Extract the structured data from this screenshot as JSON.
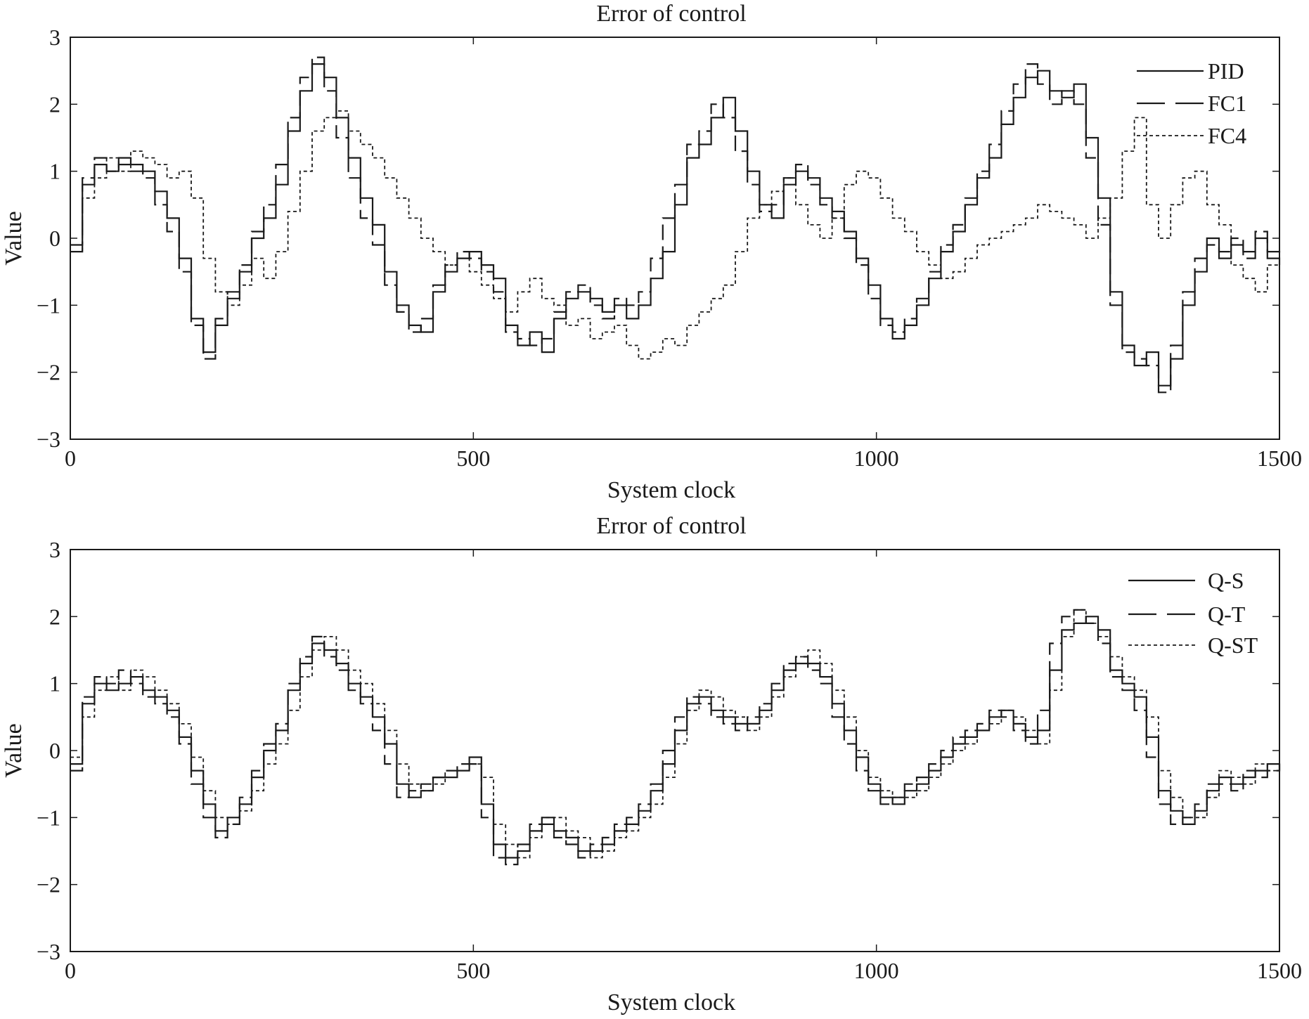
{
  "chart_data": [
    {
      "type": "line",
      "title": "Error of control",
      "xlabel": "System clock",
      "ylabel": "Value",
      "xlim": [
        0,
        1500
      ],
      "ylim": [
        -3,
        3
      ],
      "xticks": [
        0,
        500,
        1000,
        1500
      ],
      "yticks": [
        3,
        2,
        1,
        0,
        -1,
        -2,
        -3
      ],
      "xtick_labels": [
        "0",
        "500",
        "1000",
        "1500"
      ],
      "ytick_labels": [
        "3",
        "2",
        "1",
        "0",
        "−1",
        "−2",
        "−3"
      ],
      "legend_position": "top-right",
      "x": [
        0,
        15,
        30,
        45,
        60,
        75,
        90,
        105,
        120,
        135,
        150,
        165,
        180,
        195,
        210,
        225,
        240,
        255,
        270,
        285,
        300,
        315,
        330,
        345,
        360,
        375,
        390,
        405,
        420,
        435,
        450,
        465,
        480,
        495,
        510,
        525,
        540,
        555,
        570,
        585,
        600,
        615,
        630,
        645,
        660,
        675,
        690,
        705,
        720,
        735,
        750,
        765,
        780,
        795,
        810,
        825,
        840,
        855,
        870,
        885,
        900,
        915,
        930,
        945,
        960,
        975,
        990,
        1005,
        1020,
        1035,
        1050,
        1065,
        1080,
        1095,
        1110,
        1125,
        1140,
        1155,
        1170,
        1185,
        1200,
        1215,
        1230,
        1245,
        1260,
        1275,
        1290,
        1305,
        1320,
        1335,
        1350,
        1365,
        1380,
        1395,
        1410,
        1425,
        1440,
        1455,
        1470,
        1485,
        1500
      ],
      "series": [
        {
          "name": "PID",
          "dash": "solid",
          "values": [
            -0.2,
            0.8,
            1.1,
            1.0,
            1.2,
            1.1,
            1.0,
            0.7,
            0.3,
            -0.3,
            -1.2,
            -1.7,
            -1.3,
            -0.9,
            -0.5,
            0.0,
            0.3,
            0.8,
            1.6,
            2.2,
            2.6,
            2.4,
            1.8,
            1.2,
            0.6,
            0.2,
            -0.5,
            -1.0,
            -1.3,
            -1.4,
            -0.8,
            -0.5,
            -0.3,
            -0.2,
            -0.4,
            -0.6,
            -1.3,
            -1.6,
            -1.4,
            -1.7,
            -1.2,
            -0.9,
            -0.8,
            -0.9,
            -1.1,
            -1.0,
            -1.2,
            -1.0,
            -0.6,
            -0.2,
            0.5,
            1.2,
            1.4,
            1.8,
            2.1,
            1.6,
            1.0,
            0.5,
            0.3,
            0.8,
            1.0,
            0.9,
            0.6,
            0.4,
            0.1,
            -0.3,
            -0.7,
            -1.2,
            -1.5,
            -1.3,
            -1.0,
            -0.6,
            -0.2,
            0.1,
            0.5,
            0.9,
            1.2,
            1.7,
            2.1,
            2.4,
            2.5,
            2.2,
            2.1,
            2.3,
            1.5,
            0.6,
            -0.8,
            -1.6,
            -1.9,
            -1.7,
            -2.2,
            -1.8,
            -1.0,
            -0.5,
            0.0,
            -0.3,
            -0.1,
            -0.2,
            0.0,
            -0.3,
            -0.4
          ]
        },
        {
          "name": "FC1",
          "dash": "long-dash",
          "values": [
            -0.1,
            0.9,
            1.2,
            1.0,
            1.1,
            1.0,
            0.9,
            0.5,
            0.1,
            -0.5,
            -1.3,
            -1.8,
            -1.2,
            -0.8,
            -0.4,
            0.1,
            0.5,
            1.1,
            1.8,
            2.4,
            2.7,
            2.2,
            1.5,
            0.9,
            0.3,
            -0.1,
            -0.7,
            -1.1,
            -1.4,
            -1.2,
            -0.7,
            -0.4,
            -0.2,
            -0.3,
            -0.5,
            -0.8,
            -1.4,
            -1.5,
            -1.6,
            -1.5,
            -1.1,
            -0.8,
            -0.7,
            -1.0,
            -1.2,
            -0.9,
            -1.0,
            -0.8,
            -0.3,
            0.3,
            0.8,
            1.4,
            1.6,
            2.0,
            1.8,
            1.3,
            0.8,
            0.4,
            0.5,
            0.9,
            1.1,
            0.8,
            0.5,
            0.3,
            0.0,
            -0.4,
            -0.9,
            -1.3,
            -1.4,
            -1.2,
            -0.9,
            -0.5,
            -0.1,
            0.2,
            0.6,
            1.0,
            1.4,
            1.9,
            2.3,
            2.6,
            2.3,
            2.0,
            2.2,
            2.0,
            1.2,
            0.2,
            -1.0,
            -1.7,
            -1.8,
            -1.9,
            -2.3,
            -1.6,
            -0.8,
            -0.3,
            -0.1,
            -0.2,
            0.0,
            -0.3,
            0.1,
            -0.2,
            -0.3
          ]
        },
        {
          "name": "FC4",
          "dash": "dotted",
          "values": [
            -0.2,
            0.6,
            0.9,
            1.2,
            1.0,
            1.3,
            1.2,
            1.1,
            0.9,
            1.0,
            0.6,
            -0.3,
            -0.8,
            -1.0,
            -0.7,
            -0.3,
            -0.6,
            -0.2,
            0.4,
            1.0,
            1.6,
            1.8,
            1.9,
            1.6,
            1.4,
            1.2,
            0.9,
            0.6,
            0.3,
            0.0,
            -0.2,
            -0.4,
            -0.3,
            -0.5,
            -0.7,
            -0.9,
            -1.1,
            -0.8,
            -0.6,
            -0.9,
            -1.0,
            -1.3,
            -1.2,
            -1.5,
            -1.4,
            -1.3,
            -1.6,
            -1.8,
            -1.7,
            -1.5,
            -1.6,
            -1.3,
            -1.1,
            -0.9,
            -0.7,
            -0.2,
            0.3,
            0.5,
            0.7,
            0.9,
            0.5,
            0.2,
            0.0,
            0.3,
            0.8,
            1.0,
            0.9,
            0.6,
            0.3,
            0.1,
            -0.2,
            -0.4,
            -0.6,
            -0.5,
            -0.3,
            -0.1,
            0.0,
            0.1,
            0.2,
            0.3,
            0.5,
            0.4,
            0.3,
            0.2,
            0.0,
            0.3,
            0.6,
            1.3,
            1.8,
            0.5,
            0.0,
            0.5,
            0.9,
            1.0,
            0.5,
            0.2,
            -0.4,
            -0.6,
            -0.8,
            -0.4,
            -0.3
          ]
        }
      ]
    },
    {
      "type": "line",
      "title": "Error of control",
      "xlabel": "System clock",
      "ylabel": "Value",
      "xlim": [
        0,
        1500
      ],
      "ylim": [
        -3,
        3
      ],
      "xticks": [
        0,
        500,
        1000,
        1500
      ],
      "yticks": [
        3,
        2,
        1,
        0,
        -1,
        -2,
        -3
      ],
      "xtick_labels": [
        "0",
        "500",
        "1000",
        "1500"
      ],
      "ytick_labels": [
        "3",
        "2",
        "1",
        "0",
        "−1",
        "−2",
        "−3"
      ],
      "legend_position": "top-right",
      "x": [
        0,
        15,
        30,
        45,
        60,
        75,
        90,
        105,
        120,
        135,
        150,
        165,
        180,
        195,
        210,
        225,
        240,
        255,
        270,
        285,
        300,
        315,
        330,
        345,
        360,
        375,
        390,
        405,
        420,
        435,
        450,
        465,
        480,
        495,
        510,
        525,
        540,
        555,
        570,
        585,
        600,
        615,
        630,
        645,
        660,
        675,
        690,
        705,
        720,
        735,
        750,
        765,
        780,
        795,
        810,
        825,
        840,
        855,
        870,
        885,
        900,
        915,
        930,
        945,
        960,
        975,
        990,
        1005,
        1020,
        1035,
        1050,
        1065,
        1080,
        1095,
        1110,
        1125,
        1140,
        1155,
        1170,
        1185,
        1200,
        1215,
        1230,
        1245,
        1260,
        1275,
        1290,
        1305,
        1320,
        1335,
        1350,
        1365,
        1380,
        1395,
        1410,
        1425,
        1440,
        1455,
        1470,
        1485,
        1500
      ],
      "series": [
        {
          "name": "Q-S",
          "dash": "solid",
          "values": [
            -0.2,
            0.7,
            1.0,
            0.9,
            1.0,
            1.1,
            0.9,
            0.8,
            0.6,
            0.2,
            -0.3,
            -0.8,
            -1.2,
            -1.0,
            -0.8,
            -0.4,
            0.0,
            0.3,
            0.9,
            1.3,
            1.6,
            1.5,
            1.3,
            1.0,
            0.8,
            0.5,
            0.1,
            -0.5,
            -0.7,
            -0.6,
            -0.4,
            -0.4,
            -0.3,
            -0.1,
            -0.8,
            -1.4,
            -1.6,
            -1.5,
            -1.2,
            -1.0,
            -1.2,
            -1.3,
            -1.5,
            -1.5,
            -1.4,
            -1.2,
            -1.1,
            -0.9,
            -0.6,
            -0.2,
            0.3,
            0.7,
            0.8,
            0.6,
            0.5,
            0.4,
            0.4,
            0.6,
            0.9,
            1.2,
            1.3,
            1.3,
            1.1,
            0.7,
            0.3,
            -0.1,
            -0.5,
            -0.7,
            -0.8,
            -0.6,
            -0.5,
            -0.3,
            -0.1,
            0.1,
            0.2,
            0.3,
            0.5,
            0.6,
            0.4,
            0.2,
            0.3,
            1.2,
            1.8,
            1.9,
            2.0,
            1.8,
            1.2,
            1.0,
            0.8,
            0.2,
            -0.6,
            -0.9,
            -1.1,
            -0.9,
            -0.6,
            -0.4,
            -0.5,
            -0.4,
            -0.3,
            -0.2,
            -0.3
          ]
        },
        {
          "name": "Q-T",
          "dash": "long-dash",
          "values": [
            -0.3,
            0.8,
            1.1,
            1.0,
            1.2,
            1.0,
            0.8,
            0.7,
            0.5,
            0.1,
            -0.5,
            -1.0,
            -1.3,
            -1.1,
            -0.7,
            -0.3,
            0.1,
            0.4,
            1.0,
            1.4,
            1.7,
            1.4,
            1.2,
            0.9,
            0.7,
            0.3,
            -0.2,
            -0.7,
            -0.6,
            -0.5,
            -0.4,
            -0.3,
            -0.2,
            -0.2,
            -1.0,
            -1.6,
            -1.7,
            -1.4,
            -1.1,
            -1.1,
            -1.3,
            -1.4,
            -1.6,
            -1.4,
            -1.3,
            -1.1,
            -1.0,
            -0.8,
            -0.5,
            0.0,
            0.5,
            0.8,
            0.7,
            0.5,
            0.4,
            0.3,
            0.5,
            0.7,
            1.0,
            1.3,
            1.4,
            1.2,
            1.0,
            0.5,
            0.1,
            -0.3,
            -0.6,
            -0.8,
            -0.7,
            -0.5,
            -0.4,
            -0.2,
            0.0,
            0.2,
            0.3,
            0.4,
            0.6,
            0.5,
            0.3,
            0.1,
            0.6,
            1.6,
            2.0,
            2.1,
            1.9,
            1.6,
            1.1,
            0.9,
            0.6,
            -0.1,
            -0.8,
            -1.1,
            -1.0,
            -0.8,
            -0.5,
            -0.5,
            -0.6,
            -0.3,
            -0.4,
            -0.3,
            -0.2
          ]
        },
        {
          "name": "Q-ST",
          "dash": "dotted",
          "values": [
            -0.1,
            0.5,
            0.9,
            1.1,
            0.9,
            1.2,
            1.1,
            0.9,
            0.7,
            0.4,
            -0.1,
            -0.6,
            -1.0,
            -1.1,
            -0.9,
            -0.6,
            -0.2,
            0.1,
            0.6,
            1.1,
            1.5,
            1.7,
            1.5,
            1.2,
            1.0,
            0.7,
            0.3,
            -0.2,
            -0.5,
            -0.6,
            -0.5,
            -0.3,
            -0.3,
            -0.2,
            -0.4,
            -1.1,
            -1.4,
            -1.6,
            -1.3,
            -1.0,
            -1.0,
            -1.2,
            -1.3,
            -1.6,
            -1.5,
            -1.3,
            -1.2,
            -1.0,
            -0.8,
            -0.4,
            0.1,
            0.6,
            0.9,
            0.8,
            0.6,
            0.5,
            0.3,
            0.5,
            0.8,
            1.1,
            1.4,
            1.5,
            1.3,
            0.9,
            0.5,
            0.0,
            -0.4,
            -0.6,
            -0.7,
            -0.7,
            -0.6,
            -0.4,
            -0.2,
            0.0,
            0.1,
            0.3,
            0.4,
            0.6,
            0.5,
            0.3,
            0.1,
            0.9,
            1.7,
            2.1,
            1.9,
            1.7,
            1.4,
            1.1,
            0.9,
            0.5,
            -0.3,
            -0.7,
            -1.0,
            -1.0,
            -0.7,
            -0.3,
            -0.4,
            -0.5,
            -0.2,
            -0.3,
            -0.1
          ]
        }
      ]
    }
  ]
}
